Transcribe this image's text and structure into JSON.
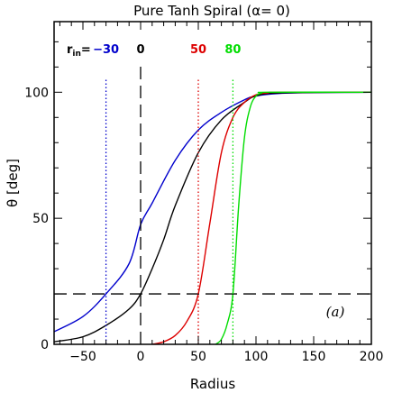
{
  "chart_data": {
    "type": "line",
    "title": "Pure Tanh Spiral (α= 0)",
    "xlabel": "Radius",
    "ylabel": "θ [deg]",
    "xlim": [
      -75,
      200
    ],
    "ylim": [
      0,
      128
    ],
    "xticks": [
      -50,
      0,
      50,
      100,
      150,
      200
    ],
    "yticks": [
      0,
      50,
      100
    ],
    "xtick_labels": [
      "−50",
      "0",
      "50",
      "100",
      "150",
      "200"
    ],
    "ytick_labels": [
      "0",
      "50",
      "100"
    ],
    "horizontal_line": {
      "y": 20,
      "style": "dashed",
      "color": "#000000"
    },
    "panel_label": "(a)",
    "rin_label_prefix": "r",
    "rin_label_sub": "in",
    "rin_label_eq": "=",
    "series": [
      {
        "color": "#0000cc",
        "rin": -30,
        "rin_label": "−30",
        "x": [
          -75,
          -50,
          -30,
          -10,
          0,
          10,
          30,
          50,
          70,
          90,
          100,
          120,
          150,
          200
        ],
        "y": [
          5,
          11,
          20,
          32,
          47.5,
          56,
          73,
          85,
          92,
          97,
          98.5,
          99.5,
          99.9,
          100
        ]
      },
      {
        "color": "#000000",
        "rin": 0,
        "rin_label": "0",
        "x": [
          -75,
          -50,
          -30,
          -10,
          0,
          10,
          20,
          30,
          50,
          70,
          90,
          100,
          120,
          200
        ],
        "y": [
          1,
          3,
          7.5,
          14,
          20,
          30,
          41.5,
          55,
          76,
          89,
          96,
          98.5,
          99.7,
          100
        ]
      },
      {
        "color": "#dd0000",
        "rin": 50,
        "rin_label": "50",
        "x": [
          10,
          20,
          30,
          40,
          50,
          60,
          70,
          80,
          90,
          100,
          110,
          120,
          200
        ],
        "y": [
          0,
          1,
          3.5,
          9,
          20,
          48,
          76,
          90,
          96,
          99,
          99.7,
          100,
          100
        ]
      },
      {
        "color": "#00dd00",
        "rin": 80,
        "rin_label": "80",
        "x": [
          65,
          70,
          75,
          80,
          85,
          90,
          95,
          100,
          105,
          110,
          200
        ],
        "y": [
          0,
          2,
          8,
          20,
          55,
          82,
          94,
          98.5,
          99.7,
          100,
          100
        ]
      }
    ],
    "vertical_lines": [
      {
        "x": -30,
        "color": "#0000cc",
        "style": "dotted"
      },
      {
        "x": 0,
        "color": "#000000",
        "style": "dashed"
      },
      {
        "x": 50,
        "color": "#dd0000",
        "style": "dotted"
      },
      {
        "x": 80,
        "color": "#00dd00",
        "style": "dotted"
      }
    ]
  }
}
